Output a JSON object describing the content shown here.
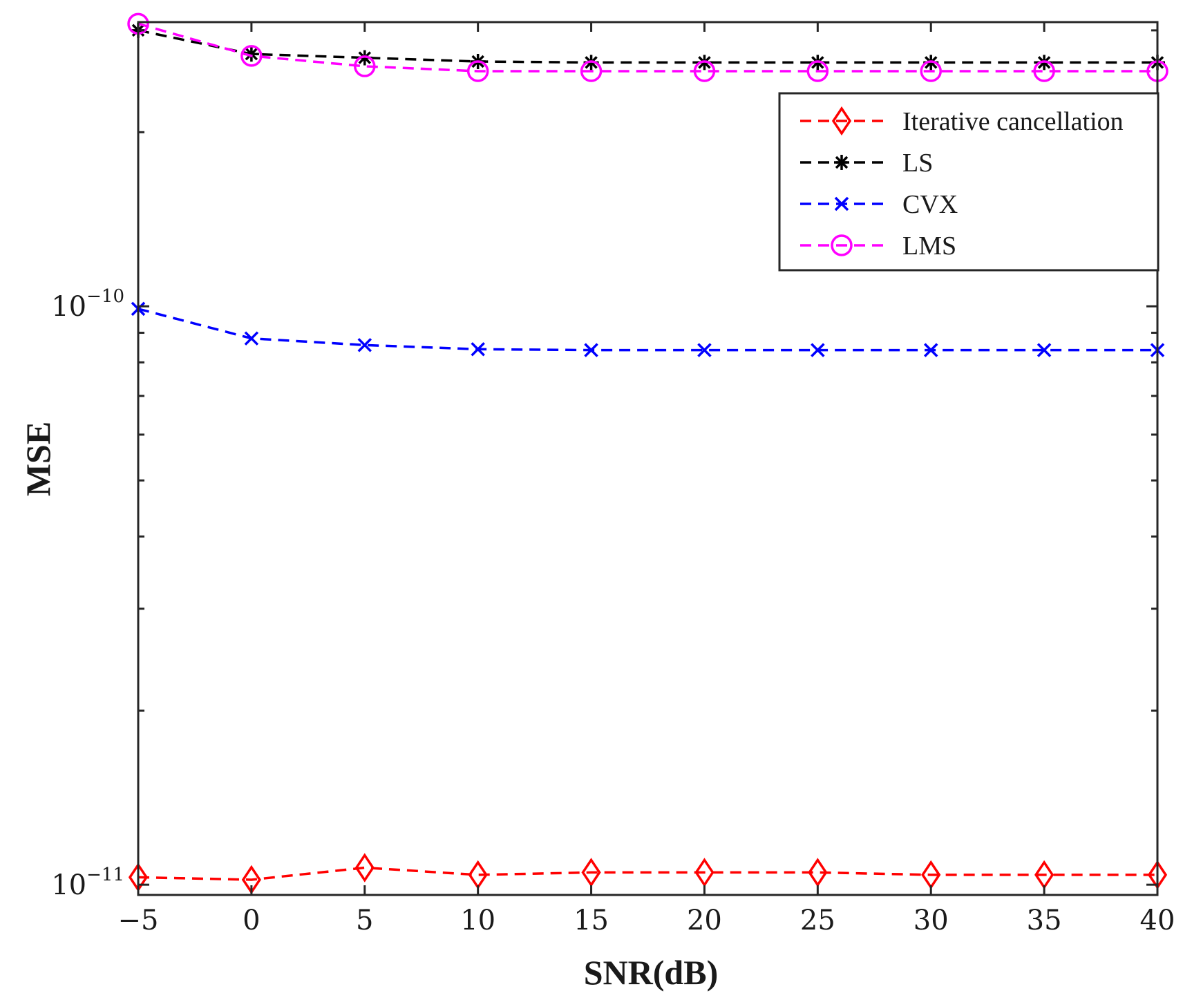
{
  "chart_data": {
    "type": "line",
    "title": "",
    "xlabel": "SNR(dB)",
    "ylabel": "MSE",
    "x": [
      -5,
      0,
      5,
      10,
      15,
      20,
      25,
      30,
      35,
      40
    ],
    "xlim": [
      -5,
      40
    ],
    "ylim": [
      9.6e-12,
      3.1e-10
    ],
    "yscale": "log",
    "xticks": [
      -5,
      0,
      5,
      10,
      15,
      20,
      25,
      30,
      35,
      40
    ],
    "xtick_labels": [
      "−5",
      "0",
      "5",
      "10",
      "15",
      "20",
      "25",
      "30",
      "35",
      "40"
    ],
    "yticks_major": [
      1e-11,
      1e-10
    ],
    "ytick_labels": [
      {
        "base": "10",
        "exp": "−11"
      },
      {
        "base": "10",
        "exp": "−10"
      }
    ],
    "yticks_minor": [
      2e-11,
      3e-11,
      4e-11,
      5e-11,
      6e-11,
      7e-11,
      8e-11,
      9e-11,
      2e-10,
      3e-10
    ],
    "grid": false,
    "legend_position": "top-right",
    "series": [
      {
        "name": "Iterative cancellation",
        "color": "#ff0000",
        "marker": "diamond",
        "line_style": "dashed",
        "values": [
          1.03e-11,
          1.02e-11,
          1.07e-11,
          1.04e-11,
          1.05e-11,
          1.05e-11,
          1.05e-11,
          1.04e-11,
          1.04e-11,
          1.04e-11
        ]
      },
      {
        "name": "LS",
        "color": "#000000",
        "marker": "asterisk",
        "line_style": "dashed",
        "values": [
          3e-10,
          2.73e-10,
          2.69e-10,
          2.65e-10,
          2.64e-10,
          2.64e-10,
          2.64e-10,
          2.64e-10,
          2.64e-10,
          2.64e-10
        ]
      },
      {
        "name": "CVX",
        "color": "#0000ff",
        "marker": "x",
        "line_style": "dashed",
        "values": [
          9.9e-11,
          8.8e-11,
          8.57e-11,
          8.43e-11,
          8.4e-11,
          8.4e-11,
          8.4e-11,
          8.4e-11,
          8.4e-11,
          8.4e-11
        ]
      },
      {
        "name": "LMS",
        "color": "#ff00ff",
        "marker": "circle",
        "line_style": "dashed",
        "values": [
          3.08e-10,
          2.71e-10,
          2.6e-10,
          2.55e-10,
          2.55e-10,
          2.55e-10,
          2.55e-10,
          2.55e-10,
          2.55e-10,
          2.55e-10
        ]
      }
    ]
  }
}
